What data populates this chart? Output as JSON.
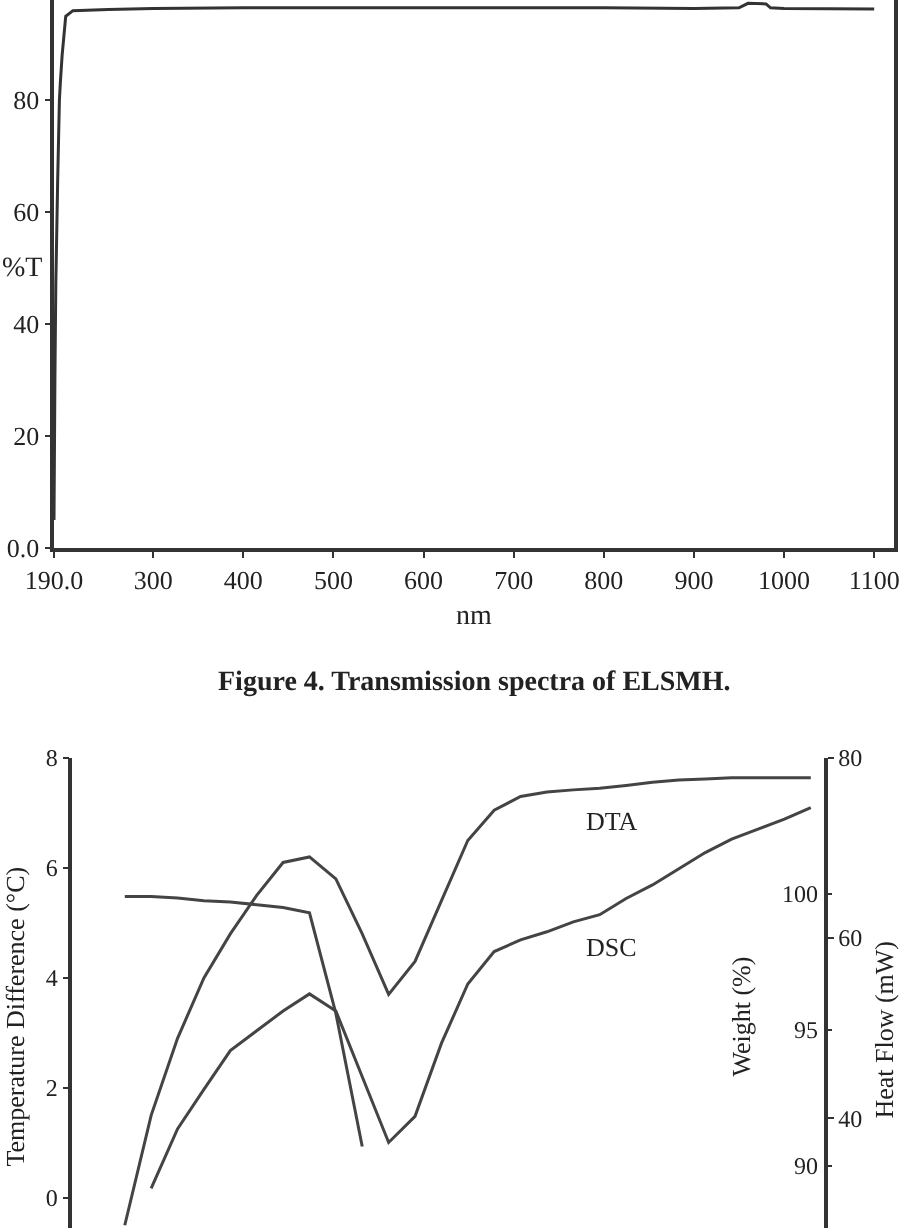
{
  "chart_data": [
    {
      "type": "line",
      "xlabel": "nm",
      "ylabel": "%T",
      "annotations": [
        "Figure 4. Transmission spectra of ELSMH."
      ],
      "x": [
        190,
        191,
        192,
        194,
        196,
        197,
        199,
        203,
        211,
        250,
        300,
        400,
        500,
        600,
        700,
        800,
        900,
        950,
        960,
        980,
        985,
        1000,
        1100
      ],
      "series": [
        {
          "color": "#333333",
          "values": [
            5,
            30,
            47,
            65,
            80,
            83,
            88,
            95,
            96,
            96.2,
            96.4,
            96.5,
            96.5,
            96.5,
            96.5,
            96.5,
            96.4,
            96.5,
            97.3,
            97.2,
            96.5,
            96.4,
            96.3
          ]
        }
      ],
      "xlim": [
        190,
        1122
      ],
      "ylim": [
        0,
        97.9
      ],
      "xticks": [
        {
          "value": 190,
          "label": "190.0"
        },
        300,
        400,
        500,
        600,
        700,
        800,
        900,
        1000,
        1100
      ],
      "yticks": [
        {
          "value": 0,
          "label": "0.0"
        },
        20,
        40,
        60,
        80
      ],
      "grid": false,
      "legend": false,
      "marker": "none",
      "line_style": "solid"
    },
    {
      "type": "line",
      "ylabel": "Temperature Difference (°C)",
      "y2label": "Heat Flow (mW)",
      "y3label": "Weight (%)",
      "categories": [
        null,
        null,
        null,
        null,
        null,
        null,
        null,
        null,
        null,
        null,
        null,
        null,
        null,
        null,
        null,
        null,
        null,
        null,
        null,
        null,
        null,
        null,
        null,
        null,
        null,
        null,
        null,
        null,
        null
      ],
      "series": [
        {
          "name": "DTA",
          "color": "#444444",
          "values": [
            null,
            null,
            -0.5,
            1.5,
            2.9,
            4.0,
            4.8,
            5.5,
            6.1,
            6.2,
            5.8,
            4.8,
            3.7,
            4.3,
            5.4,
            6.5,
            7.05,
            7.3,
            7.38,
            7.42,
            7.45,
            7.5,
            7.56,
            7.6,
            7.62,
            7.64,
            7.64,
            7.64,
            7.64
          ]
        },
        {
          "name": "DSC",
          "axis": "y2",
          "color": "#444444",
          "values": [
            null,
            null,
            null,
            32.2,
            38.8,
            43.2,
            47.5,
            49.7,
            51.9,
            53.8,
            51.9,
            44.6,
            37.3,
            40.2,
            48.3,
            54.9,
            58.5,
            59.8,
            60.7,
            61.8,
            62.6,
            64.4,
            65.9,
            67.7,
            69.5,
            71,
            72.1,
            73.2,
            74.5
          ]
        },
        {
          "axis": "y3",
          "color": "#444444",
          "values": [
            null,
            null,
            99.9,
            99.9,
            99.85,
            99.75,
            99.7,
            99.6,
            99.5,
            99.3,
            95.6,
            90.7,
            null,
            null,
            null,
            null,
            null,
            null,
            null,
            null,
            null,
            null,
            null,
            null,
            null,
            null,
            null,
            null,
            null
          ]
        }
      ],
      "ylim": [
        -0.55,
        8
      ],
      "yticks": [
        0,
        2,
        4,
        6,
        8
      ],
      "y2lim": [
        27.8,
        80
      ],
      "y2ticks": [
        40,
        60,
        80
      ],
      "y3lim": [
        87.7,
        105
      ],
      "y3ticks": [
        90,
        95,
        100
      ],
      "grid": false,
      "legend": false,
      "marker": "none",
      "line_style": "solid"
    }
  ]
}
